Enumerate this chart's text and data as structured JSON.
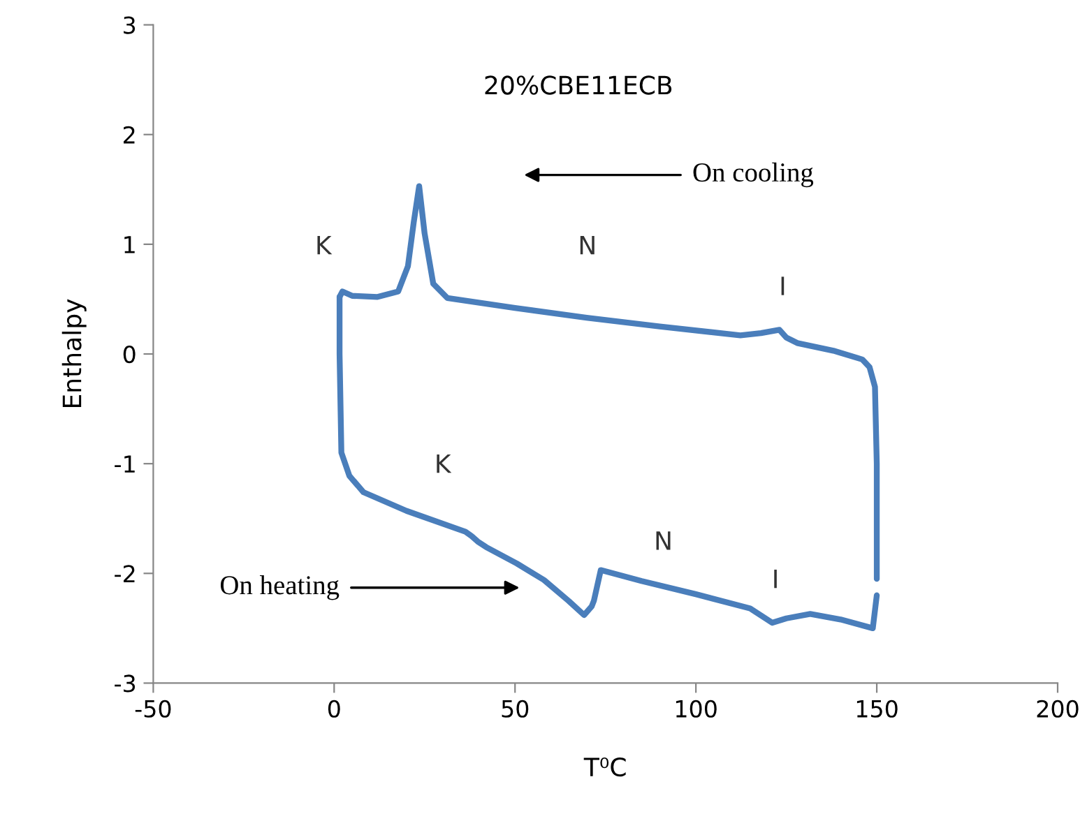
{
  "chart_data": {
    "type": "line",
    "title": "20%CBE11ECB",
    "xlabel": "T⁰C",
    "ylabel": "Enthalpy",
    "xlim": [
      -50,
      200
    ],
    "xticks": [
      -50,
      0,
      50,
      100,
      150,
      200
    ],
    "ylim": [
      -3,
      3
    ],
    "yticks": [
      -3,
      -2,
      -1,
      0,
      1,
      2,
      3
    ],
    "grid": false,
    "legend": false,
    "marker": "none",
    "line_style": "solid",
    "series": [
      {
        "color": "#4a7ebb",
        "x": [
          1.5,
          1.5,
          2,
          4.2,
          8.1,
          20,
          36.3,
          38,
          39.7,
          42,
          50.5,
          58,
          64.8,
          69.1,
          71.2,
          71.8,
          73.7,
          85,
          100,
          115,
          121.1,
          125,
          131.6,
          140,
          148.9,
          150
        ],
        "values": [
          0.52,
          0,
          -0.9,
          -1.11,
          -1.26,
          -1.43,
          -1.62,
          -1.66,
          -1.71,
          -1.76,
          -1.91,
          -2.06,
          -2.25,
          -2.38,
          -2.3,
          -2.25,
          -1.97,
          -2.07,
          -2.19,
          -2.32,
          -2.45,
          -2.41,
          -2.37,
          -2.42,
          -2.5,
          -2.2
        ]
      },
      {
        "color": "#4a7ebb",
        "x": [
          1.5,
          2.3,
          5,
          12,
          17.7,
          20.4,
          22,
          23.5,
          25,
          27.4,
          31.3,
          50,
          69.8,
          90,
          112.3,
          118,
          123.1,
          125,
          128,
          138,
          146,
          148,
          149.5,
          150,
          150
        ],
        "values": [
          0.52,
          0.57,
          0.53,
          0.52,
          0.57,
          0.8,
          1.2,
          1.53,
          1.1,
          0.64,
          0.51,
          0.42,
          0.33,
          0.25,
          0.17,
          0.19,
          0.22,
          0.15,
          0.1,
          0.03,
          -0.05,
          -0.12,
          -0.3,
          -1.0,
          -2.05
        ]
      }
    ],
    "annotations": [
      "On cooling",
      "On heating",
      "K",
      "N",
      "I",
      "K",
      "N",
      "I"
    ]
  }
}
